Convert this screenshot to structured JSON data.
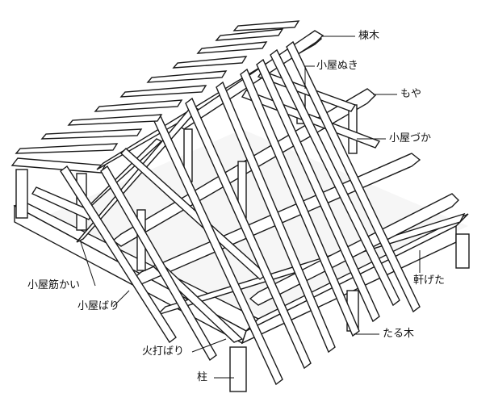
{
  "labels": {
    "ridge": "棟木",
    "strut_tie": "小屋ぬき",
    "purlin": "もや",
    "king_post": "小屋づか",
    "eave_beam": "軒げた",
    "rafter": "たる木",
    "hip_tie": "火打ばり",
    "column": "柱",
    "tie_beam": "小屋ばり",
    "brace": "小屋筋かい"
  }
}
